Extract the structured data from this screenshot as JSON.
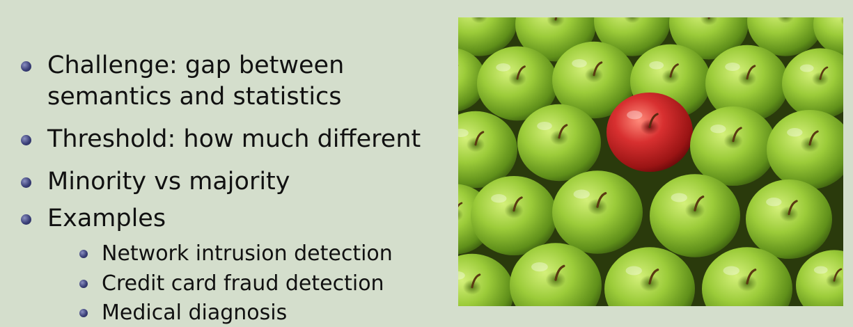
{
  "slide": {
    "bullets": [
      {
        "lines": [
          "Challenge: gap between",
          "semantics and statistics"
        ]
      },
      {
        "lines": [
          "Threshold: how much different"
        ]
      },
      {
        "lines": [
          "Minority vs majority"
        ]
      },
      {
        "lines": [
          "Examples"
        ]
      }
    ],
    "sub_bullets": [
      "Network intrusion detection",
      "Credit card fraud detection",
      "Medical diagnosis"
    ]
  },
  "image": {
    "subject": "many green apples with one red apple",
    "colors": {
      "green_apple": "#9ccc3a",
      "red_apple": "#d02a2a",
      "background": "#d4decc"
    }
  }
}
